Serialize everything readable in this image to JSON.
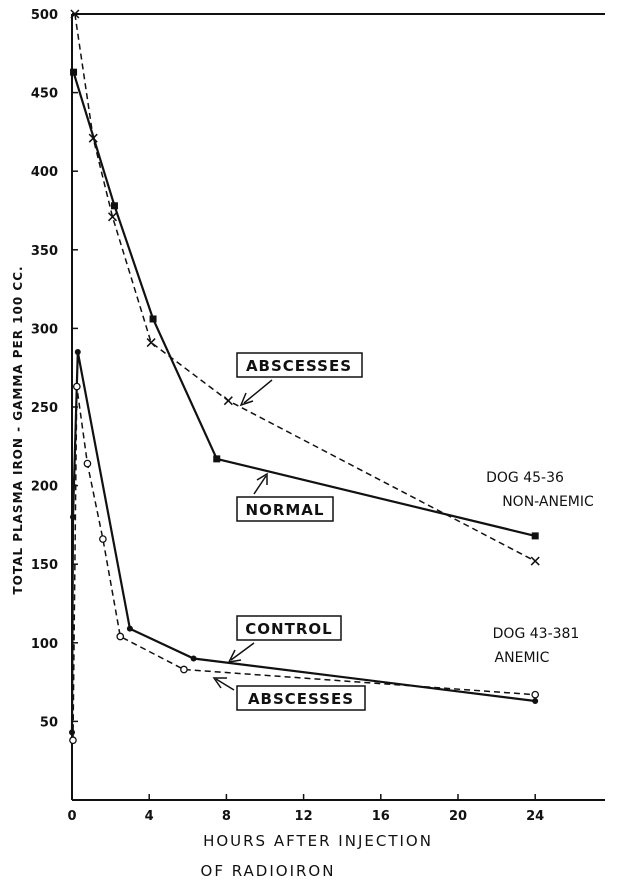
{
  "chart_data": {
    "type": "line",
    "xlabel_line1": "HOURS AFTER INJECTION",
    "xlabel_line2": "OF RADIOIRON",
    "ylabel": "TOTAL PLASMA IRON - GAMMA PER 100 CC.",
    "xlim": [
      0,
      28
    ],
    "ylim": [
      0,
      500
    ],
    "x_ticks": [
      0,
      4,
      8,
      12,
      16,
      20,
      24
    ],
    "y_ticks": [
      50,
      100,
      150,
      200,
      250,
      300,
      350,
      400,
      450,
      500
    ],
    "grid": false,
    "series": [
      {
        "name": "NORMAL",
        "style": "solid",
        "marker": "square",
        "points": [
          [
            0.08,
            463
          ],
          [
            2.2,
            378
          ],
          [
            4.2,
            306
          ],
          [
            7.5,
            217
          ],
          [
            24,
            168
          ]
        ]
      },
      {
        "name": "ABSCESSES",
        "style": "dashed",
        "marker": "x",
        "points": [
          [
            0.15,
            500
          ],
          [
            1.1,
            421
          ],
          [
            2.1,
            371
          ],
          [
            4.1,
            291
          ],
          [
            8.1,
            254
          ],
          [
            24,
            152
          ]
        ]
      },
      {
        "name": "CONTROL",
        "style": "solid",
        "marker": "dot",
        "points": [
          [
            0.0,
            43
          ],
          [
            0.05,
            180
          ],
          [
            0.3,
            285
          ],
          [
            3.0,
            109
          ],
          [
            6.3,
            90
          ],
          [
            24,
            63
          ]
        ]
      },
      {
        "name": "ABSCESSES",
        "style": "dashed",
        "marker": "circle",
        "points": [
          [
            0.05,
            38
          ],
          [
            0.25,
            263
          ],
          [
            0.8,
            214
          ],
          [
            1.6,
            166
          ],
          [
            2.5,
            104
          ],
          [
            5.8,
            83
          ],
          [
            24,
            67
          ]
        ]
      }
    ],
    "annotations": {
      "abscesses_upper": "ABSCESSES",
      "normal": "NORMAL",
      "control": "CONTROL",
      "abscesses_lower": "ABSCESSES",
      "dog_upper_line1": "DOG 45-36",
      "dog_upper_line2": "NON-ANEMIC",
      "dog_lower_line1": "DOG 43-381",
      "dog_lower_line2": "ANEMIC"
    }
  }
}
